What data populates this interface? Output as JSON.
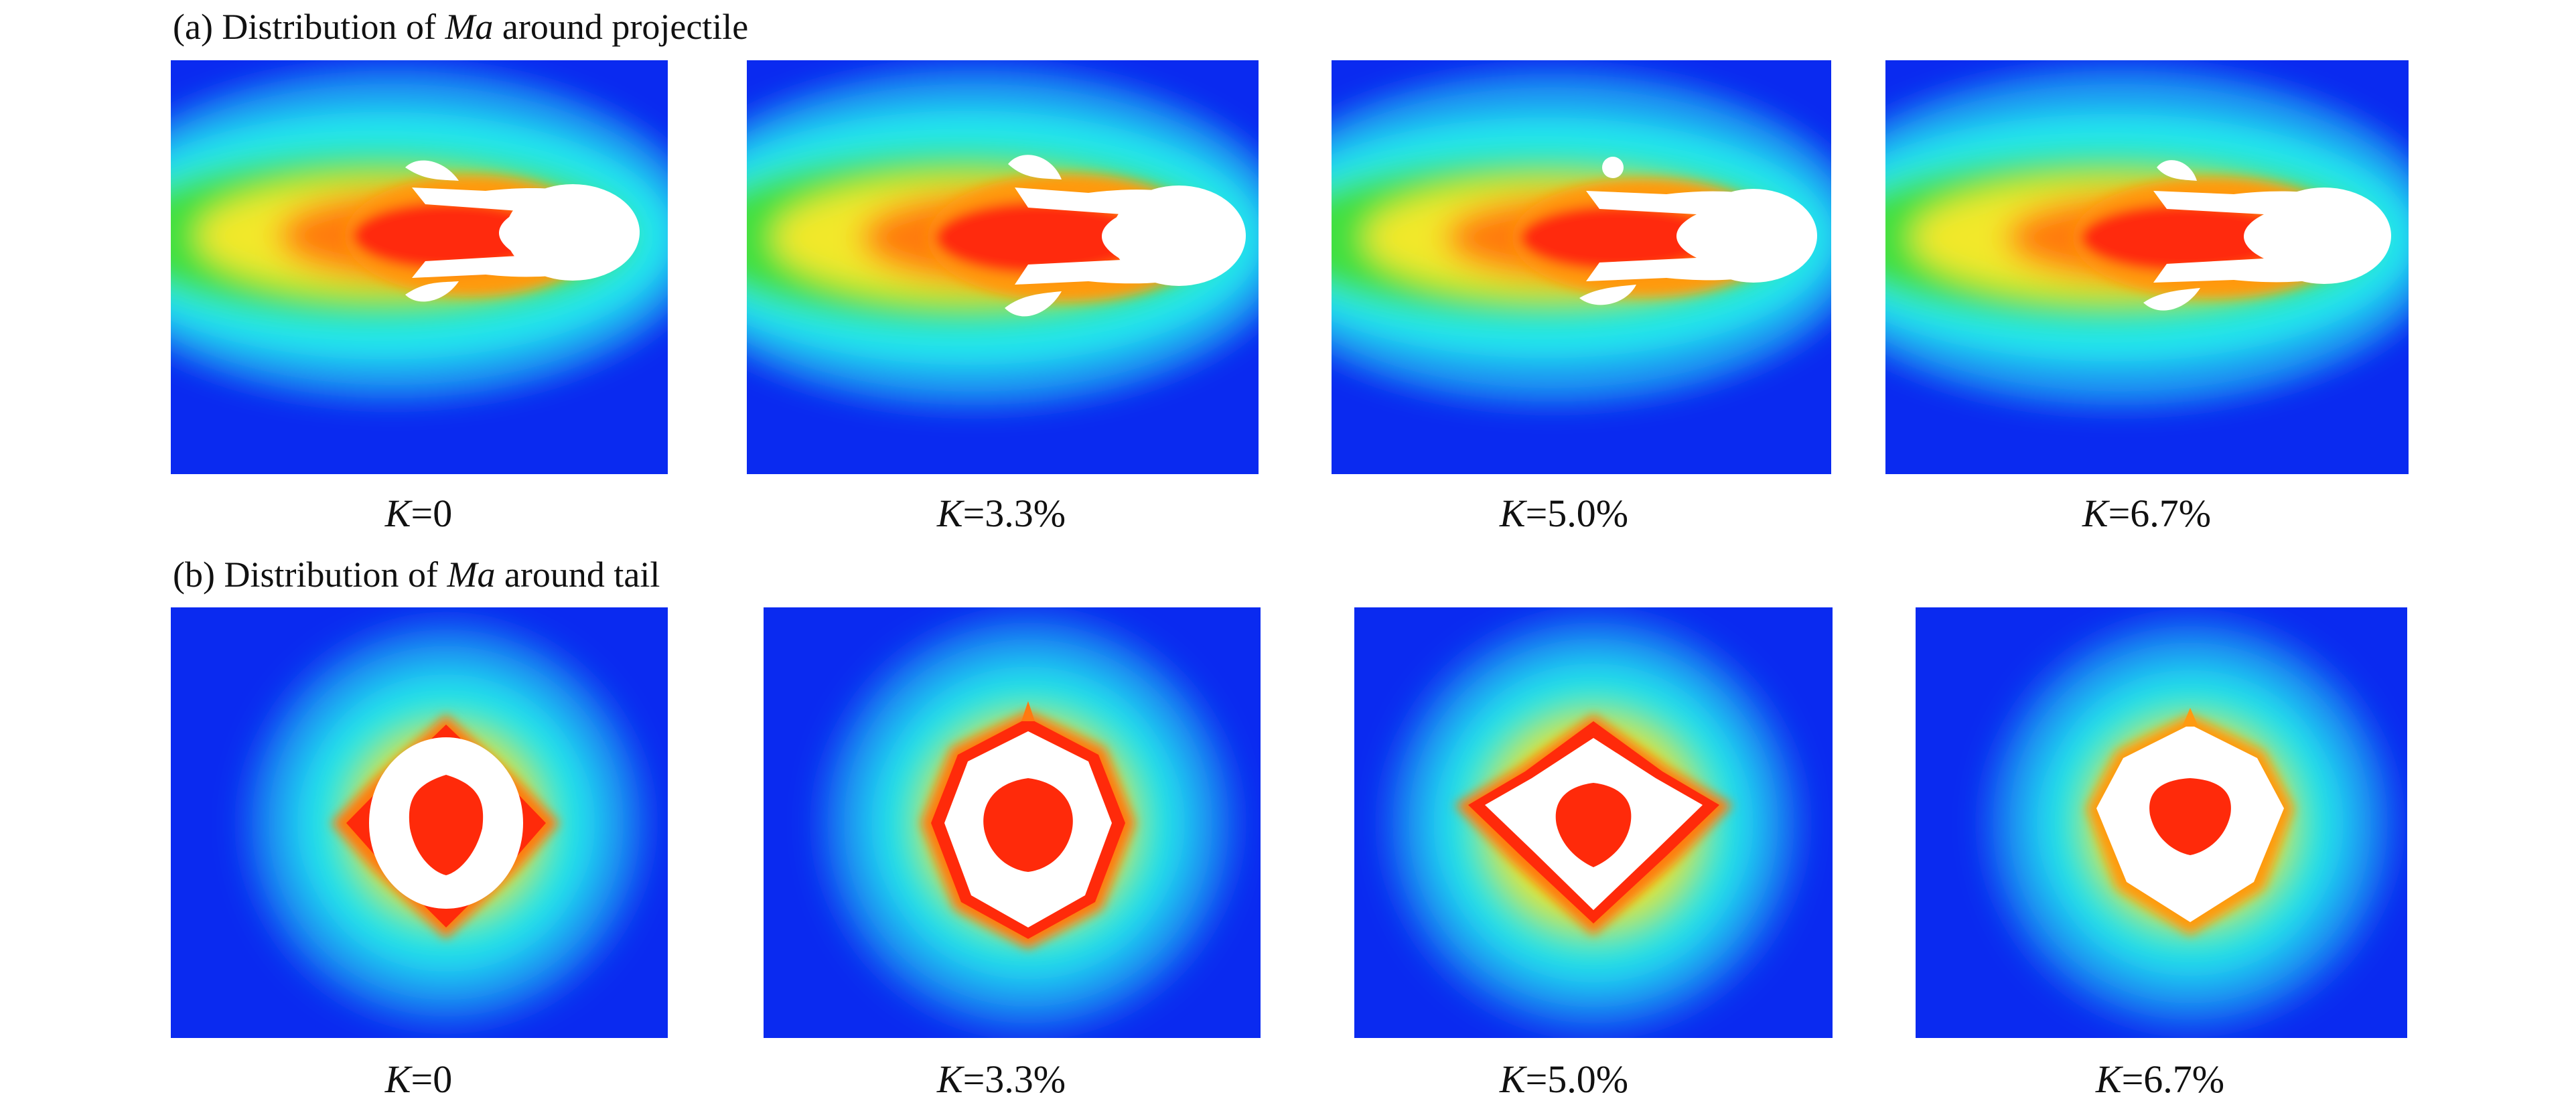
{
  "rows": [
    {
      "title_prefix": "(a)  Distribution of ",
      "symbol": "Ma",
      "title_suffix": "  around projectile",
      "captions": [
        {
          "var": "K",
          "value": "=0"
        },
        {
          "var": "K",
          "value": "=3.3%"
        },
        {
          "var": "K",
          "value": "=5.0%"
        },
        {
          "var": "K",
          "value": "=6.7%"
        }
      ]
    },
    {
      "title_prefix": "(b)  Distribution of ",
      "symbol": "Ma",
      "title_suffix": "  around tail",
      "captions": [
        {
          "var": "K",
          "value": "=0"
        },
        {
          "var": "K",
          "value": "=3.3%"
        },
        {
          "var": "K",
          "value": "=5.0%"
        },
        {
          "var": "K",
          "value": "=6.7%"
        }
      ]
    }
  ],
  "colors": {
    "background_blue": "#0a2af0",
    "cyan": "#22e8ee",
    "green": "#40e040",
    "yellow": "#f2e82a",
    "orange": "#ff7a10",
    "red": "#ff2a0a",
    "white": "#ffffff"
  }
}
